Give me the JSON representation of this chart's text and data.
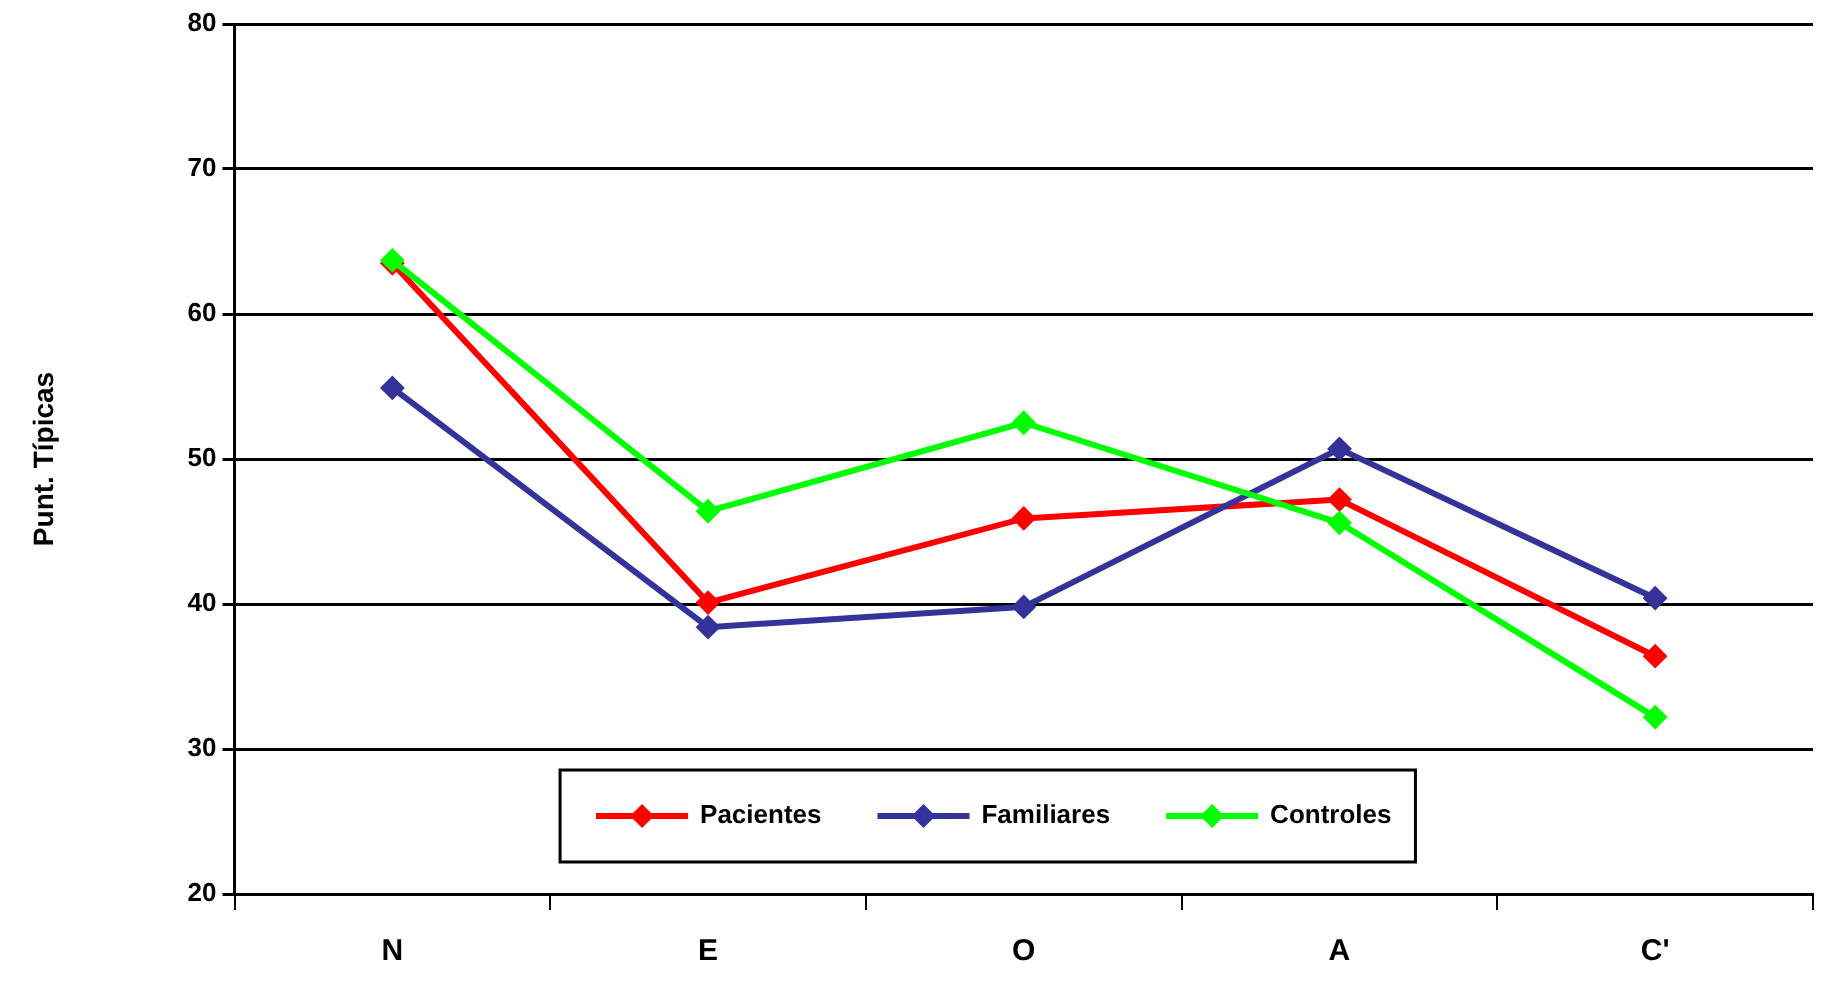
{
  "chart_data": {
    "type": "line",
    "ylabel": "Punt. Típicas",
    "categories": [
      "N",
      "E",
      "O",
      "A",
      "C'"
    ],
    "series": [
      {
        "name": "Pacientes",
        "color": "#ff0000",
        "values": [
          63.5,
          40.1,
          45.9,
          47.2,
          36.4
        ]
      },
      {
        "name": "Familiares",
        "color": "#333399",
        "values": [
          54.9,
          38.4,
          39.8,
          50.7,
          40.4
        ]
      },
      {
        "name": "Controles",
        "color": "#00ff00",
        "values": [
          63.7,
          46.4,
          52.5,
          45.6,
          32.2
        ]
      }
    ],
    "ylim": [
      20,
      80
    ],
    "yticks": [
      20,
      30,
      40,
      50,
      60,
      70,
      80
    ],
    "grid": "y",
    "legend": "bottom",
    "marker": "diamond",
    "line_style": "solid"
  }
}
